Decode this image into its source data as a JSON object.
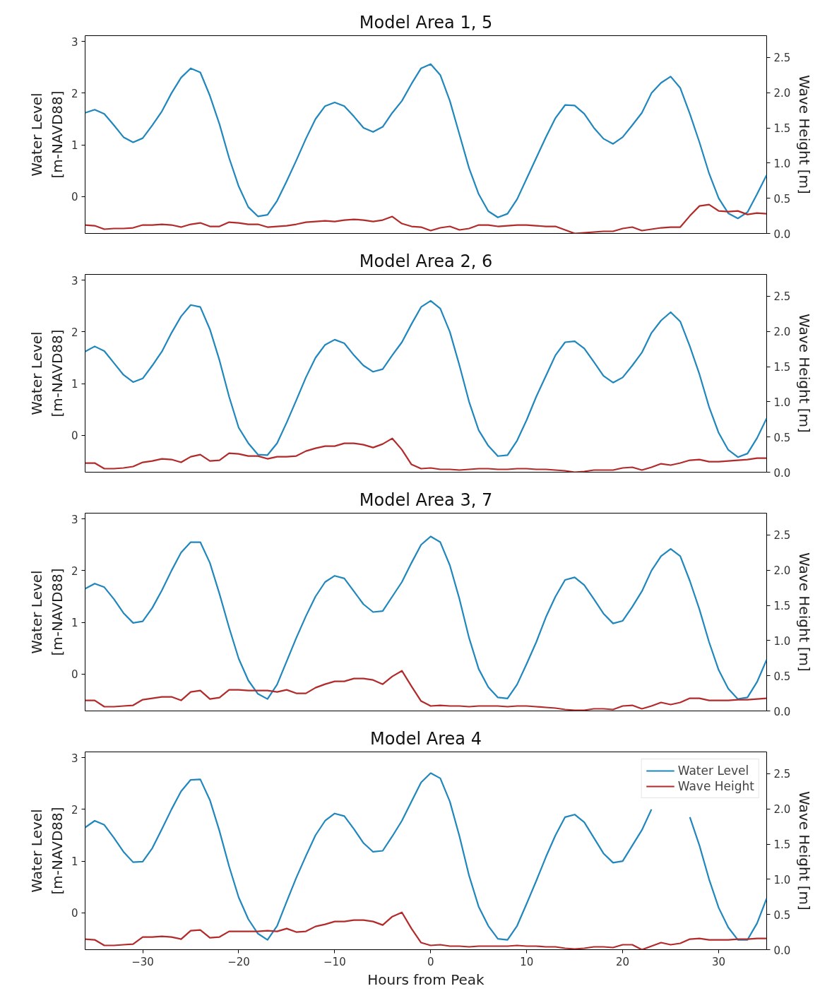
{
  "chart_data": [
    {
      "type": "line",
      "title": "Model Area 1, 5",
      "ylabel": "Water Level\n[m-NAVD88]",
      "y2label": "Wave Height [m]",
      "x": [
        -36,
        -35,
        -34,
        -33,
        -32,
        -31,
        -30,
        -29,
        -28,
        -27,
        -26,
        -25,
        -24,
        -23,
        -22,
        -21,
        -20,
        -19,
        -18,
        -17,
        -16,
        -15,
        -14,
        -13,
        -12,
        -11,
        -10,
        -9,
        -8,
        -7,
        -6,
        -5,
        -4,
        -3,
        -2,
        -1,
        0,
        1,
        2,
        3,
        4,
        5,
        6,
        7,
        8,
        9,
        10,
        11,
        12,
        13,
        14,
        15,
        16,
        17,
        18,
        19,
        20,
        21,
        22,
        23,
        24,
        25,
        26,
        27,
        28,
        29,
        30,
        31,
        32,
        33,
        34,
        35
      ],
      "xlim": [
        -36,
        35
      ],
      "ylim": [
        -0.71,
        3.11
      ],
      "yticks": [
        0,
        1,
        2,
        3
      ],
      "y2lim": [
        0,
        2.81
      ],
      "y2ticks": [
        {
          "value": 0,
          "label": "0.0"
        },
        {
          "value": 0.5,
          "label": "0.5"
        },
        {
          "value": 1,
          "label": "1.0"
        },
        {
          "value": 1.5,
          "label": "1.5"
        },
        {
          "value": 2,
          "label": "2.0"
        },
        {
          "value": 2.5,
          "label": "2.5"
        }
      ],
      "tick_labels": "y",
      "grid": false,
      "legend": false,
      "series": [
        {
          "color": "#1f87bd",
          "values": [
            1.62,
            1.68,
            1.6,
            1.38,
            1.15,
            1.05,
            1.13,
            1.38,
            1.65,
            2.0,
            2.3,
            2.48,
            2.4,
            1.95,
            1.4,
            0.75,
            0.2,
            -0.2,
            -0.38,
            -0.35,
            -0.08,
            0.3,
            0.7,
            1.12,
            1.5,
            1.75,
            1.82,
            1.75,
            1.55,
            1.33,
            1.25,
            1.35,
            1.62,
            1.85,
            2.18,
            2.48,
            2.56,
            2.35,
            1.85,
            1.2,
            0.55,
            0.05,
            -0.28,
            -0.4,
            -0.33,
            -0.05,
            0.35,
            0.75,
            1.15,
            1.52,
            1.77,
            1.76,
            1.6,
            1.33,
            1.12,
            1.02,
            1.15,
            1.38,
            1.62,
            2.0,
            2.2,
            2.32,
            2.1,
            1.6,
            1.05,
            0.45,
            -0.03,
            -0.32,
            -0.42,
            -0.3,
            0.05,
            0.42
          ]
        },
        {
          "color": "#b22a2a",
          "axis": "y2",
          "values": [
            0.12,
            0.11,
            0.06,
            0.07,
            0.07,
            0.08,
            0.12,
            0.12,
            0.13,
            0.12,
            0.09,
            0.13,
            0.15,
            0.1,
            0.1,
            0.16,
            0.15,
            0.13,
            0.13,
            0.09,
            0.1,
            0.11,
            0.13,
            0.16,
            0.17,
            0.18,
            0.17,
            0.19,
            0.2,
            0.19,
            0.17,
            0.19,
            0.24,
            0.14,
            0.1,
            0.09,
            0.04,
            0.08,
            0.1,
            0.05,
            0.07,
            0.12,
            0.12,
            0.1,
            0.11,
            0.12,
            0.12,
            0.11,
            0.1,
            0.1,
            0.05,
            0.0,
            0.01,
            0.02,
            0.03,
            0.03,
            0.07,
            0.09,
            0.04,
            0.06,
            0.08,
            0.09,
            0.09,
            0.25,
            0.39,
            0.41,
            0.32,
            0.31,
            0.32,
            0.27,
            0.29,
            0.28
          ]
        }
      ]
    },
    {
      "type": "line",
      "title": "Model Area 2, 6",
      "ylabel": "Water Level\n[m-NAVD88]",
      "y2label": "Wave Height [m]",
      "x": [
        -36,
        -35,
        -34,
        -33,
        -32,
        -31,
        -30,
        -29,
        -28,
        -27,
        -26,
        -25,
        -24,
        -23,
        -22,
        -21,
        -20,
        -19,
        -18,
        -17,
        -16,
        -15,
        -14,
        -13,
        -12,
        -11,
        -10,
        -9,
        -8,
        -7,
        -6,
        -5,
        -4,
        -3,
        -2,
        -1,
        0,
        1,
        2,
        3,
        4,
        5,
        6,
        7,
        8,
        9,
        10,
        11,
        12,
        13,
        14,
        15,
        16,
        17,
        18,
        19,
        20,
        21,
        22,
        23,
        24,
        25,
        26,
        27,
        28,
        29,
        30,
        31,
        32,
        33,
        34,
        35
      ],
      "xlim": [
        -36,
        35
      ],
      "ylim": [
        -0.71,
        3.11
      ],
      "yticks": [
        0,
        1,
        2,
        3
      ],
      "y2lim": [
        0,
        2.81
      ],
      "y2ticks": [
        {
          "value": 0,
          "label": "0.0"
        },
        {
          "value": 0.5,
          "label": "0.5"
        },
        {
          "value": 1,
          "label": "1.0"
        },
        {
          "value": 1.5,
          "label": "1.5"
        },
        {
          "value": 2,
          "label": "2.0"
        },
        {
          "value": 2.5,
          "label": "2.5"
        }
      ],
      "tick_labels": "y",
      "grid": false,
      "legend": false,
      "series": [
        {
          "color": "#1f87bd",
          "values": [
            1.62,
            1.72,
            1.63,
            1.4,
            1.17,
            1.03,
            1.1,
            1.35,
            1.62,
            1.98,
            2.3,
            2.52,
            2.48,
            2.05,
            1.45,
            0.75,
            0.15,
            -0.15,
            -0.37,
            -0.38,
            -0.15,
            0.25,
            0.68,
            1.12,
            1.5,
            1.75,
            1.85,
            1.78,
            1.55,
            1.35,
            1.23,
            1.28,
            1.55,
            1.8,
            2.15,
            2.48,
            2.6,
            2.45,
            2.0,
            1.35,
            0.65,
            0.1,
            -0.2,
            -0.4,
            -0.38,
            -0.1,
            0.3,
            0.75,
            1.15,
            1.55,
            1.8,
            1.82,
            1.68,
            1.42,
            1.15,
            1.02,
            1.12,
            1.35,
            1.6,
            1.98,
            2.22,
            2.38,
            2.2,
            1.72,
            1.18,
            0.55,
            0.05,
            -0.28,
            -0.42,
            -0.35,
            -0.05,
            0.33
          ]
        },
        {
          "color": "#b22a2a",
          "axis": "y2",
          "values": [
            0.13,
            0.13,
            0.05,
            0.05,
            0.06,
            0.08,
            0.14,
            0.16,
            0.19,
            0.18,
            0.14,
            0.22,
            0.25,
            0.16,
            0.17,
            0.27,
            0.26,
            0.23,
            0.23,
            0.19,
            0.22,
            0.22,
            0.23,
            0.3,
            0.34,
            0.37,
            0.37,
            0.41,
            0.41,
            0.39,
            0.35,
            0.4,
            0.48,
            0.32,
            0.11,
            0.05,
            0.06,
            0.04,
            0.04,
            0.03,
            0.04,
            0.05,
            0.05,
            0.04,
            0.04,
            0.05,
            0.05,
            0.04,
            0.04,
            0.03,
            0.02,
            0.0,
            0.01,
            0.03,
            0.03,
            0.03,
            0.06,
            0.07,
            0.03,
            0.07,
            0.12,
            0.1,
            0.13,
            0.17,
            0.18,
            0.15,
            0.15,
            0.16,
            0.17,
            0.18,
            0.2,
            0.2
          ]
        }
      ]
    },
    {
      "type": "line",
      "title": "Model Area 3, 7",
      "ylabel": "Water Level\n[m-NAVD88]",
      "y2label": "Wave Height [m]",
      "x": [
        -36,
        -35,
        -34,
        -33,
        -32,
        -31,
        -30,
        -29,
        -28,
        -27,
        -26,
        -25,
        -24,
        -23,
        -22,
        -21,
        -20,
        -19,
        -18,
        -17,
        -16,
        -15,
        -14,
        -13,
        -12,
        -11,
        -10,
        -9,
        -8,
        -7,
        -6,
        -5,
        -4,
        -3,
        -2,
        -1,
        0,
        1,
        2,
        3,
        4,
        5,
        6,
        7,
        8,
        9,
        10,
        11,
        12,
        13,
        14,
        15,
        16,
        17,
        18,
        19,
        20,
        21,
        22,
        23,
        24,
        25,
        26,
        27,
        28,
        29,
        30,
        31,
        32,
        33,
        34,
        35
      ],
      "xlim": [
        -36,
        35
      ],
      "ylim": [
        -0.71,
        3.11
      ],
      "yticks": [
        0,
        1,
        2,
        3
      ],
      "y2lim": [
        0,
        2.81
      ],
      "y2ticks": [
        {
          "value": 0,
          "label": "0.0"
        },
        {
          "value": 0.5,
          "label": "0.5"
        },
        {
          "value": 1,
          "label": "1.0"
        },
        {
          "value": 1.5,
          "label": "1.5"
        },
        {
          "value": 2,
          "label": "2.0"
        },
        {
          "value": 2.5,
          "label": "2.5"
        }
      ],
      "tick_labels": "y",
      "grid": false,
      "legend": false,
      "series": [
        {
          "color": "#1f87bd",
          "values": [
            1.65,
            1.75,
            1.68,
            1.45,
            1.18,
            0.99,
            1.02,
            1.28,
            1.62,
            2.0,
            2.35,
            2.55,
            2.55,
            2.15,
            1.55,
            0.9,
            0.3,
            -0.12,
            -0.38,
            -0.48,
            -0.2,
            0.25,
            0.7,
            1.12,
            1.5,
            1.78,
            1.9,
            1.85,
            1.6,
            1.35,
            1.2,
            1.22,
            1.5,
            1.78,
            2.15,
            2.5,
            2.66,
            2.55,
            2.1,
            1.45,
            0.7,
            0.1,
            -0.25,
            -0.45,
            -0.47,
            -0.2,
            0.2,
            0.62,
            1.1,
            1.5,
            1.82,
            1.87,
            1.72,
            1.45,
            1.17,
            0.98,
            1.03,
            1.3,
            1.6,
            2.0,
            2.28,
            2.42,
            2.28,
            1.8,
            1.25,
            0.62,
            0.08,
            -0.28,
            -0.48,
            -0.45,
            -0.15,
            0.28
          ]
        },
        {
          "color": "#b22a2a",
          "axis": "y2",
          "values": [
            0.15,
            0.15,
            0.06,
            0.06,
            0.07,
            0.08,
            0.16,
            0.18,
            0.2,
            0.2,
            0.15,
            0.27,
            0.29,
            0.17,
            0.19,
            0.3,
            0.3,
            0.29,
            0.29,
            0.29,
            0.27,
            0.3,
            0.25,
            0.25,
            0.33,
            0.38,
            0.42,
            0.42,
            0.46,
            0.46,
            0.44,
            0.38,
            0.49,
            0.57,
            0.35,
            0.14,
            0.07,
            0.08,
            0.07,
            0.07,
            0.06,
            0.07,
            0.07,
            0.07,
            0.06,
            0.07,
            0.07,
            0.06,
            0.05,
            0.04,
            0.02,
            0.01,
            0.01,
            0.03,
            0.03,
            0.02,
            0.07,
            0.08,
            0.03,
            0.07,
            0.12,
            0.09,
            0.12,
            0.18,
            0.18,
            0.15,
            0.15,
            0.15,
            0.16,
            0.16,
            0.17,
            0.18
          ]
        }
      ]
    },
    {
      "type": "line",
      "title": "Model Area 4",
      "xlabel": "Hours from Peak",
      "ylabel": "Water Level\n[m-NAVD88]",
      "y2label": "Wave Height [m]",
      "x": [
        -36,
        -35,
        -34,
        -33,
        -32,
        -31,
        -30,
        -29,
        -28,
        -27,
        -26,
        -25,
        -24,
        -23,
        -22,
        -21,
        -20,
        -19,
        -18,
        -17,
        -16,
        -15,
        -14,
        -13,
        -12,
        -11,
        -10,
        -9,
        -8,
        -7,
        -6,
        -5,
        -4,
        -3,
        -2,
        -1,
        0,
        1,
        2,
        3,
        4,
        5,
        6,
        7,
        8,
        9,
        10,
        11,
        12,
        13,
        14,
        15,
        16,
        17,
        18,
        19,
        20,
        21,
        22,
        23,
        24,
        25,
        26,
        27,
        28,
        29,
        30,
        31,
        32,
        33,
        34,
        35
      ],
      "xlim": [
        -36,
        35
      ],
      "xticks": [
        {
          "value": -30,
          "label": "−30"
        },
        {
          "value": -20,
          "label": "−20"
        },
        {
          "value": -10,
          "label": "−10"
        },
        0,
        10,
        20,
        30
      ],
      "ylim": [
        -0.71,
        3.11
      ],
      "yticks": [
        0,
        1,
        2,
        3
      ],
      "y2lim": [
        0,
        2.81
      ],
      "y2ticks": [
        {
          "value": 0,
          "label": "0.0"
        },
        {
          "value": 0.5,
          "label": "0.5"
        },
        {
          "value": 1,
          "label": "1.0"
        },
        {
          "value": 1.5,
          "label": "1.5"
        },
        {
          "value": 2,
          "label": "2.0"
        },
        {
          "value": 2.5,
          "label": "2.5"
        }
      ],
      "grid": false,
      "legend": "top right",
      "series": [
        {
          "name": "Water Level",
          "color": "#1f87bd",
          "values": [
            1.65,
            1.78,
            1.7,
            1.45,
            1.18,
            0.98,
            0.99,
            1.25,
            1.62,
            2.0,
            2.35,
            2.57,
            2.58,
            2.18,
            1.58,
            0.9,
            0.3,
            -0.12,
            -0.4,
            -0.52,
            -0.25,
            0.22,
            0.68,
            1.1,
            1.5,
            1.78,
            1.92,
            1.87,
            1.62,
            1.35,
            1.18,
            1.2,
            1.48,
            1.78,
            2.15,
            2.52,
            2.7,
            2.6,
            2.15,
            1.48,
            0.72,
            0.12,
            -0.25,
            -0.5,
            -0.52,
            -0.25,
            0.18,
            0.62,
            1.08,
            1.5,
            1.85,
            1.9,
            1.75,
            1.45,
            1.15,
            0.97,
            1.0,
            1.3,
            1.6,
            2.0,
            null,
            null,
            null,
            1.85,
            1.3,
            0.65,
            0.1,
            -0.28,
            -0.52,
            -0.52,
            -0.2,
            0.28
          ]
        },
        {
          "name": "Wave Height",
          "color": "#b22a2a",
          "axis": "y2",
          "values": [
            0.15,
            0.14,
            0.06,
            0.06,
            0.07,
            0.08,
            0.18,
            0.18,
            0.19,
            0.18,
            0.15,
            0.27,
            0.28,
            0.17,
            0.18,
            0.26,
            0.26,
            0.26,
            0.26,
            0.27,
            0.26,
            0.3,
            0.25,
            0.26,
            0.33,
            0.36,
            0.4,
            0.4,
            0.42,
            0.42,
            0.4,
            0.35,
            0.47,
            0.53,
            0.3,
            0.1,
            0.06,
            0.07,
            0.05,
            0.05,
            0.04,
            0.05,
            0.05,
            0.05,
            0.05,
            0.06,
            0.05,
            0.05,
            0.04,
            0.04,
            0.02,
            0.01,
            0.02,
            0.04,
            0.04,
            0.03,
            0.07,
            0.07,
            0.0,
            0.05,
            0.1,
            0.07,
            0.09,
            0.15,
            0.16,
            0.14,
            0.14,
            0.14,
            0.15,
            0.15,
            0.16,
            0.16
          ]
        }
      ]
    }
  ]
}
